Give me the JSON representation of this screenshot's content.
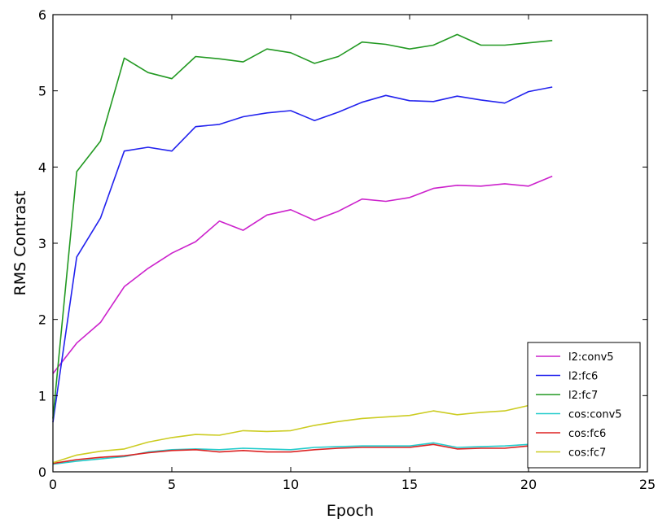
{
  "chart_data": {
    "type": "line",
    "xlabel": "Epoch",
    "ylabel": "RMS Contrast",
    "xlim": [
      0,
      25
    ],
    "ylim": [
      0,
      6
    ],
    "xticks": [
      "0",
      "5",
      "10",
      "15",
      "20",
      "25"
    ],
    "yticks": [
      "0",
      "1",
      "2",
      "3",
      "4",
      "5",
      "6"
    ],
    "grid": false,
    "legend_position": "lower-right",
    "x": [
      0,
      1,
      2,
      3,
      4,
      5,
      6,
      7,
      8,
      9,
      10,
      11,
      12,
      13,
      14,
      15,
      16,
      17,
      18,
      19,
      20,
      21
    ],
    "series": [
      {
        "name": "l2:conv5",
        "color": "#cc22cc",
        "values": [
          1.29,
          1.69,
          1.96,
          2.43,
          2.67,
          2.87,
          3.02,
          3.29,
          3.17,
          3.37,
          3.44,
          3.3,
          3.42,
          3.58,
          3.55,
          3.6,
          3.72,
          3.76,
          3.75,
          3.78,
          3.75,
          3.88
        ]
      },
      {
        "name": "l2:fc6",
        "color": "#2222ee",
        "values": [
          0.65,
          2.82,
          3.33,
          4.21,
          4.26,
          4.21,
          4.53,
          4.56,
          4.66,
          4.71,
          4.74,
          4.61,
          4.72,
          4.85,
          4.94,
          4.87,
          4.86,
          4.93,
          4.88,
          4.84,
          4.99,
          5.05
        ]
      },
      {
        "name": "l2:fc7",
        "color": "#229922",
        "values": [
          0.7,
          3.94,
          4.34,
          5.43,
          5.24,
          5.16,
          5.45,
          5.42,
          5.38,
          5.55,
          5.5,
          5.36,
          5.45,
          5.64,
          5.61,
          5.55,
          5.6,
          5.74,
          5.6,
          5.6,
          5.63,
          5.66
        ]
      },
      {
        "name": "cos:conv5",
        "color": "#22cccc",
        "values": [
          0.1,
          0.14,
          0.17,
          0.2,
          0.26,
          0.29,
          0.3,
          0.29,
          0.31,
          0.3,
          0.29,
          0.32,
          0.33,
          0.34,
          0.34,
          0.34,
          0.38,
          0.32,
          0.33,
          0.34,
          0.36,
          0.38
        ]
      },
      {
        "name": "cos:fc6",
        "color": "#dd2222",
        "values": [
          0.11,
          0.16,
          0.19,
          0.21,
          0.25,
          0.28,
          0.29,
          0.26,
          0.28,
          0.26,
          0.26,
          0.29,
          0.31,
          0.32,
          0.32,
          0.32,
          0.36,
          0.3,
          0.31,
          0.31,
          0.34,
          0.37
        ]
      },
      {
        "name": "cos:fc7",
        "color": "#cccc22",
        "values": [
          0.12,
          0.22,
          0.27,
          0.3,
          0.39,
          0.45,
          0.49,
          0.48,
          0.54,
          0.53,
          0.54,
          0.61,
          0.66,
          0.7,
          0.72,
          0.74,
          0.8,
          0.75,
          0.78,
          0.8,
          0.87,
          0.92
        ]
      }
    ]
  }
}
